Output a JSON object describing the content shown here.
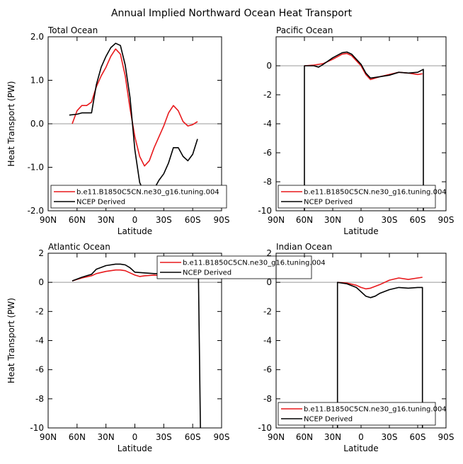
{
  "figure": {
    "title": "Annual Implied Northward Ocean Heat Transport"
  },
  "colors": {
    "model": "#e8191c",
    "obs": "#000000",
    "zero_line": "#999999",
    "axis": "#000000"
  },
  "chart_data": [
    {
      "type": "line",
      "title": "Total Ocean",
      "xlabel": "Latitude",
      "ylabel": "Heat Transport (PW)",
      "xlim": [
        90,
        -90
      ],
      "ylim": [
        -2,
        2
      ],
      "x_ticks": [
        90,
        60,
        30,
        0,
        -30,
        -60,
        -90
      ],
      "x_tick_labels": [
        "90N",
        "60N",
        "30N",
        "0",
        "30S",
        "60S",
        "90S"
      ],
      "y_ticks": [
        -2,
        -1,
        0,
        1,
        2
      ],
      "y_tick_labels": [
        "-2.0",
        "-1.0",
        "0.0",
        "1.0",
        "2.0"
      ],
      "show_y_label": true,
      "legend": {
        "position": "bottom-left",
        "entries": [
          "b.e11.B1850C5CN.ne30_g16.tuning.004",
          "NCEP Derived"
        ]
      },
      "series": [
        {
          "name": "b.e11.B1850C5CN.ne30_g16.tuning.004",
          "color_key": "model",
          "x": [
            65,
            60,
            55,
            50,
            45,
            40,
            35,
            30,
            25,
            20,
            15,
            10,
            5,
            0,
            -5,
            -10,
            -15,
            -20,
            -25,
            -30,
            -35,
            -40,
            -45,
            -50,
            -55,
            -60,
            -65
          ],
          "y": [
            0.0,
            0.3,
            0.42,
            0.42,
            0.5,
            0.85,
            1.1,
            1.3,
            1.55,
            1.72,
            1.6,
            1.1,
            0.35,
            -0.3,
            -0.75,
            -0.97,
            -0.85,
            -0.55,
            -0.3,
            -0.05,
            0.25,
            0.42,
            0.3,
            0.05,
            -0.05,
            -0.02,
            0.05
          ]
        },
        {
          "name": "NCEP Derived",
          "color_key": "obs",
          "x": [
            68,
            60,
            55,
            50,
            45,
            40,
            35,
            30,
            25,
            20,
            15,
            10,
            5,
            0,
            -5,
            -10,
            -15,
            -20,
            -25,
            -30,
            -35,
            -40,
            -45,
            -50,
            -55,
            -60,
            -65
          ],
          "y": [
            0.2,
            0.22,
            0.25,
            0.25,
            0.25,
            0.9,
            1.3,
            1.55,
            1.75,
            1.85,
            1.8,
            1.35,
            0.6,
            -0.6,
            -1.35,
            -1.6,
            -1.62,
            -1.5,
            -1.3,
            -1.15,
            -0.9,
            -0.55,
            -0.55,
            -0.75,
            -0.85,
            -0.7,
            -0.35
          ]
        }
      ]
    },
    {
      "type": "line",
      "title": "Pacific Ocean",
      "xlabel": "Latitude",
      "ylabel": "",
      "xlim": [
        90,
        -90
      ],
      "ylim": [
        -10,
        2
      ],
      "x_ticks": [
        90,
        60,
        30,
        0,
        -30,
        -60,
        -90
      ],
      "x_tick_labels": [
        "90N",
        "60N",
        "30N",
        "0",
        "30S",
        "60S",
        "90S"
      ],
      "y_ticks": [
        -10,
        -8,
        -6,
        -4,
        -2,
        0
      ],
      "y_tick_labels": [
        "-10",
        "-8",
        "-6",
        "-4",
        "-2",
        "0"
      ],
      "show_y_label": false,
      "legend": {
        "position": "bottom-left",
        "entries": [
          "b.e11.B1850C5CN.ne30_g16.tuning.004",
          "NCEP Derived"
        ]
      },
      "series": [
        {
          "name": "b.e11.B1850C5CN.ne30_g16.tuning.004",
          "color_key": "model",
          "x": [
            60,
            50,
            40,
            30,
            20,
            15,
            10,
            0,
            -5,
            -10,
            -20,
            -30,
            -40,
            -50,
            -60,
            -65
          ],
          "y": [
            0.0,
            0.05,
            0.15,
            0.45,
            0.8,
            0.85,
            0.7,
            0.0,
            -0.6,
            -0.95,
            -0.75,
            -0.6,
            -0.45,
            -0.5,
            -0.6,
            -0.55
          ]
        },
        {
          "name": "NCEP Derived",
          "color_key": "obs",
          "x": [
            60,
            60,
            50,
            45,
            40,
            30,
            20,
            15,
            10,
            0,
            -5,
            -10,
            -20,
            -30,
            -40,
            -50,
            -60,
            -66,
            -66
          ],
          "y": [
            -10,
            0.0,
            0.0,
            -0.1,
            0.1,
            0.55,
            0.9,
            0.95,
            0.8,
            0.1,
            -0.5,
            -0.85,
            -0.75,
            -0.65,
            -0.45,
            -0.5,
            -0.45,
            -0.25,
            -10
          ]
        }
      ]
    },
    {
      "type": "line",
      "title": "Atlantic Ocean",
      "xlabel": "Latitude",
      "ylabel": "Heat Transport (PW)",
      "xlim": [
        90,
        -90
      ],
      "ylim": [
        -10,
        2
      ],
      "x_ticks": [
        90,
        60,
        30,
        0,
        -30,
        -60,
        -90
      ],
      "x_tick_labels": [
        "90N",
        "60N",
        "30N",
        "0",
        "30S",
        "60S",
        "90S"
      ],
      "y_ticks": [
        -10,
        -8,
        -6,
        -4,
        -2,
        0,
        2
      ],
      "y_tick_labels": [
        "-10",
        "-8",
        "-6",
        "-4",
        "-2",
        "0",
        "2"
      ],
      "show_y_label": true,
      "legend": {
        "position": "top-right",
        "entries": [
          "b.e11.B1850C5CN.ne30_g16.tuning.004",
          "NCEP Derived"
        ]
      },
      "series": [
        {
          "name": "b.e11.B1850C5CN.ne30_g16.tuning.004",
          "color_key": "model",
          "x": [
            65,
            55,
            45,
            40,
            30,
            20,
            15,
            10,
            5,
            0,
            -5,
            -10,
            -20,
            -30,
            -40,
            -50,
            -60,
            -66
          ],
          "y": [
            0.1,
            0.3,
            0.45,
            0.6,
            0.75,
            0.85,
            0.85,
            0.8,
            0.65,
            0.5,
            0.4,
            0.45,
            0.5,
            0.45,
            0.6,
            0.55,
            0.45,
            0.4
          ]
        },
        {
          "name": "NCEP Derived",
          "color_key": "obs",
          "x": [
            65,
            55,
            50,
            45,
            40,
            30,
            20,
            15,
            10,
            5,
            0,
            -10,
            -20,
            -30,
            -40,
            -50,
            -60,
            -66,
            -68
          ],
          "y": [
            0.1,
            0.35,
            0.45,
            0.55,
            0.9,
            1.15,
            1.25,
            1.25,
            1.2,
            1.0,
            0.7,
            0.65,
            0.6,
            0.6,
            0.65,
            0.65,
            0.55,
            0.5,
            -10
          ]
        }
      ]
    },
    {
      "type": "line",
      "title": "Indian Ocean",
      "xlabel": "Latitude",
      "ylabel": "",
      "xlim": [
        90,
        -90
      ],
      "ylim": [
        -10,
        2
      ],
      "x_ticks": [
        90,
        60,
        30,
        0,
        -30,
        -60,
        -90
      ],
      "x_tick_labels": [
        "90N",
        "60N",
        "30N",
        "0",
        "30S",
        "60S",
        "90S"
      ],
      "y_ticks": [
        -10,
        -8,
        -6,
        -4,
        -2,
        0,
        2
      ],
      "y_tick_labels": [
        "-10",
        "-8",
        "-6",
        "-4",
        "-2",
        "0",
        "2"
      ],
      "show_y_label": false,
      "legend": {
        "position": "bottom-left",
        "entries": [
          "b.e11.B1850C5CN.ne30_g16.tuning.004",
          "NCEP Derived"
        ]
      },
      "series": [
        {
          "name": "b.e11.B1850C5CN.ne30_g16.tuning.004",
          "color_key": "model",
          "x": [
            25,
            15,
            5,
            0,
            -5,
            -10,
            -20,
            -30,
            -40,
            -50,
            -60,
            -65
          ],
          "y": [
            0.0,
            -0.05,
            -0.2,
            -0.35,
            -0.45,
            -0.4,
            -0.15,
            0.15,
            0.3,
            0.2,
            0.3,
            0.35
          ]
        },
        {
          "name": "NCEP Derived",
          "color_key": "obs",
          "x": [
            25,
            25,
            15,
            5,
            0,
            -5,
            -10,
            -15,
            -20,
            -30,
            -40,
            -50,
            -60,
            -65,
            -65
          ],
          "y": [
            -10,
            0.0,
            -0.1,
            -0.35,
            -0.65,
            -0.95,
            -1.05,
            -0.95,
            -0.75,
            -0.5,
            -0.35,
            -0.4,
            -0.35,
            -0.35,
            -10
          ]
        }
      ]
    }
  ]
}
